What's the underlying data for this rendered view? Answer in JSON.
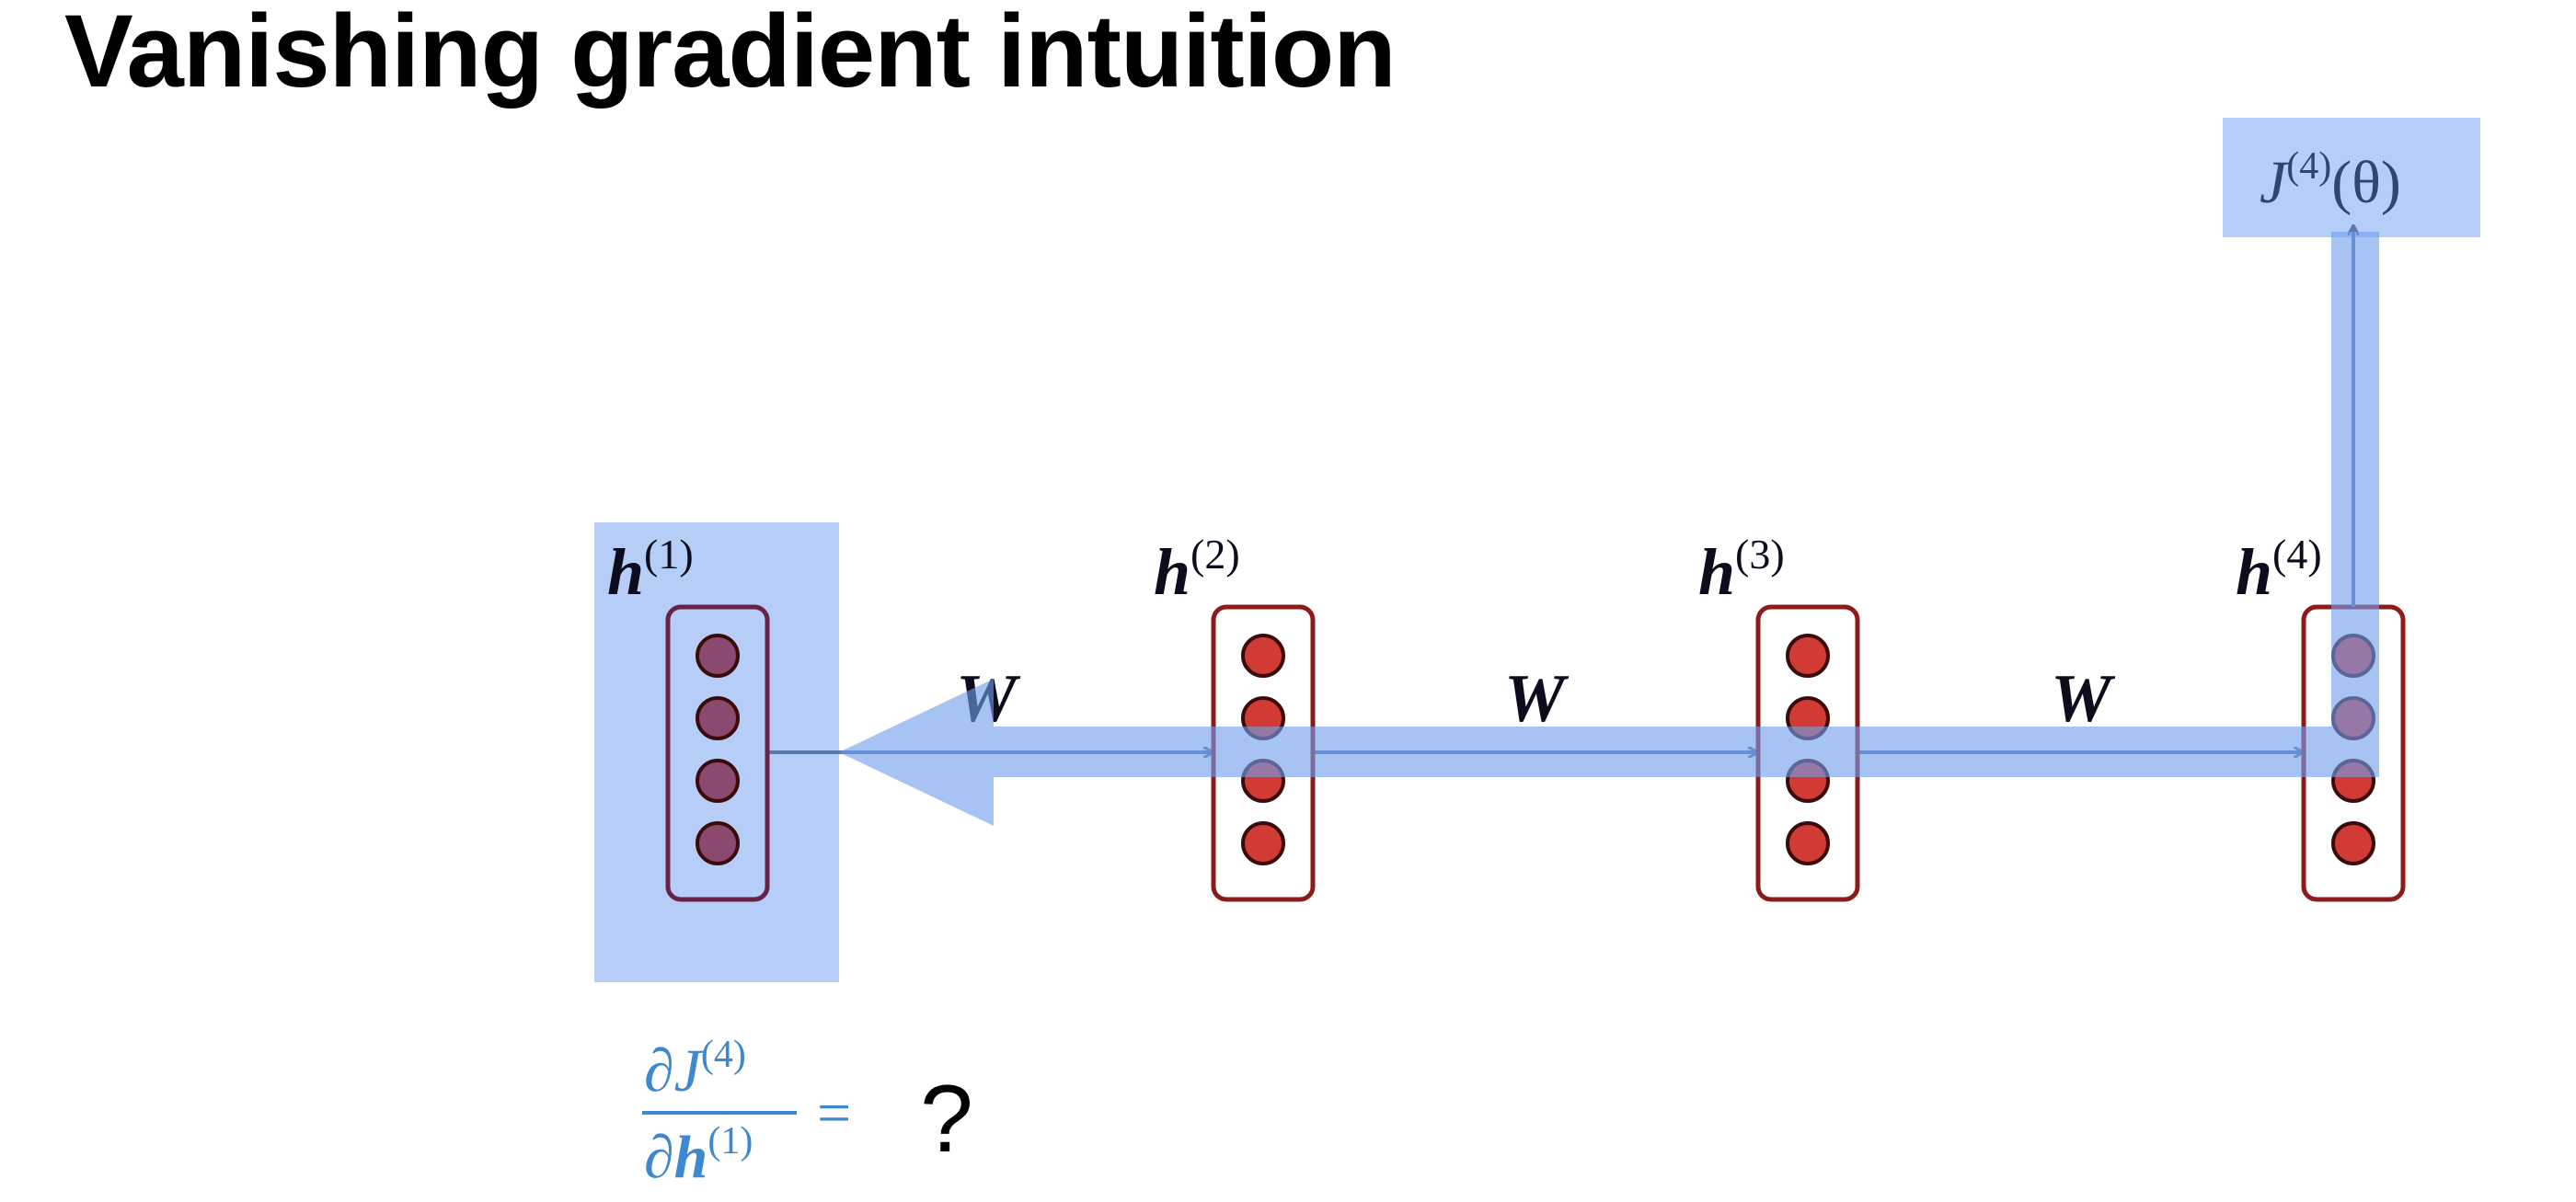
{
  "slide": {
    "title": "Vanishing gradient intuition"
  },
  "colors": {
    "highlight": "#6f9eec",
    "highlight_box": "#b5cdf7",
    "neuron_fill": "#d13a35",
    "neuron_stroke": "#3a0b0b",
    "neuron_highlighted_fill": "#8c4970",
    "layer_box_stroke": "#8e1b1b",
    "connector": "#5a79ad",
    "gradient_text": "#3d88cf"
  },
  "diagram": {
    "layers": [
      {
        "label_base": "h",
        "label_sup": "(1)"
      },
      {
        "label_base": "h",
        "label_sup": "(2)"
      },
      {
        "label_base": "h",
        "label_sup": "(3)"
      },
      {
        "label_base": "h",
        "label_sup": "(4)"
      }
    ],
    "weights": [
      {
        "label": "W"
      },
      {
        "label": "W"
      },
      {
        "label": "W"
      }
    ],
    "loss": {
      "base": "J",
      "sup": "(4)",
      "arg": "(θ)"
    },
    "question": {
      "numerator_base": "∂J",
      "numerator_sup": "(4)",
      "denominator_partial": "∂",
      "denominator_base": "h",
      "denominator_sup": "(1)",
      "equals": "=",
      "mark": "?"
    }
  }
}
